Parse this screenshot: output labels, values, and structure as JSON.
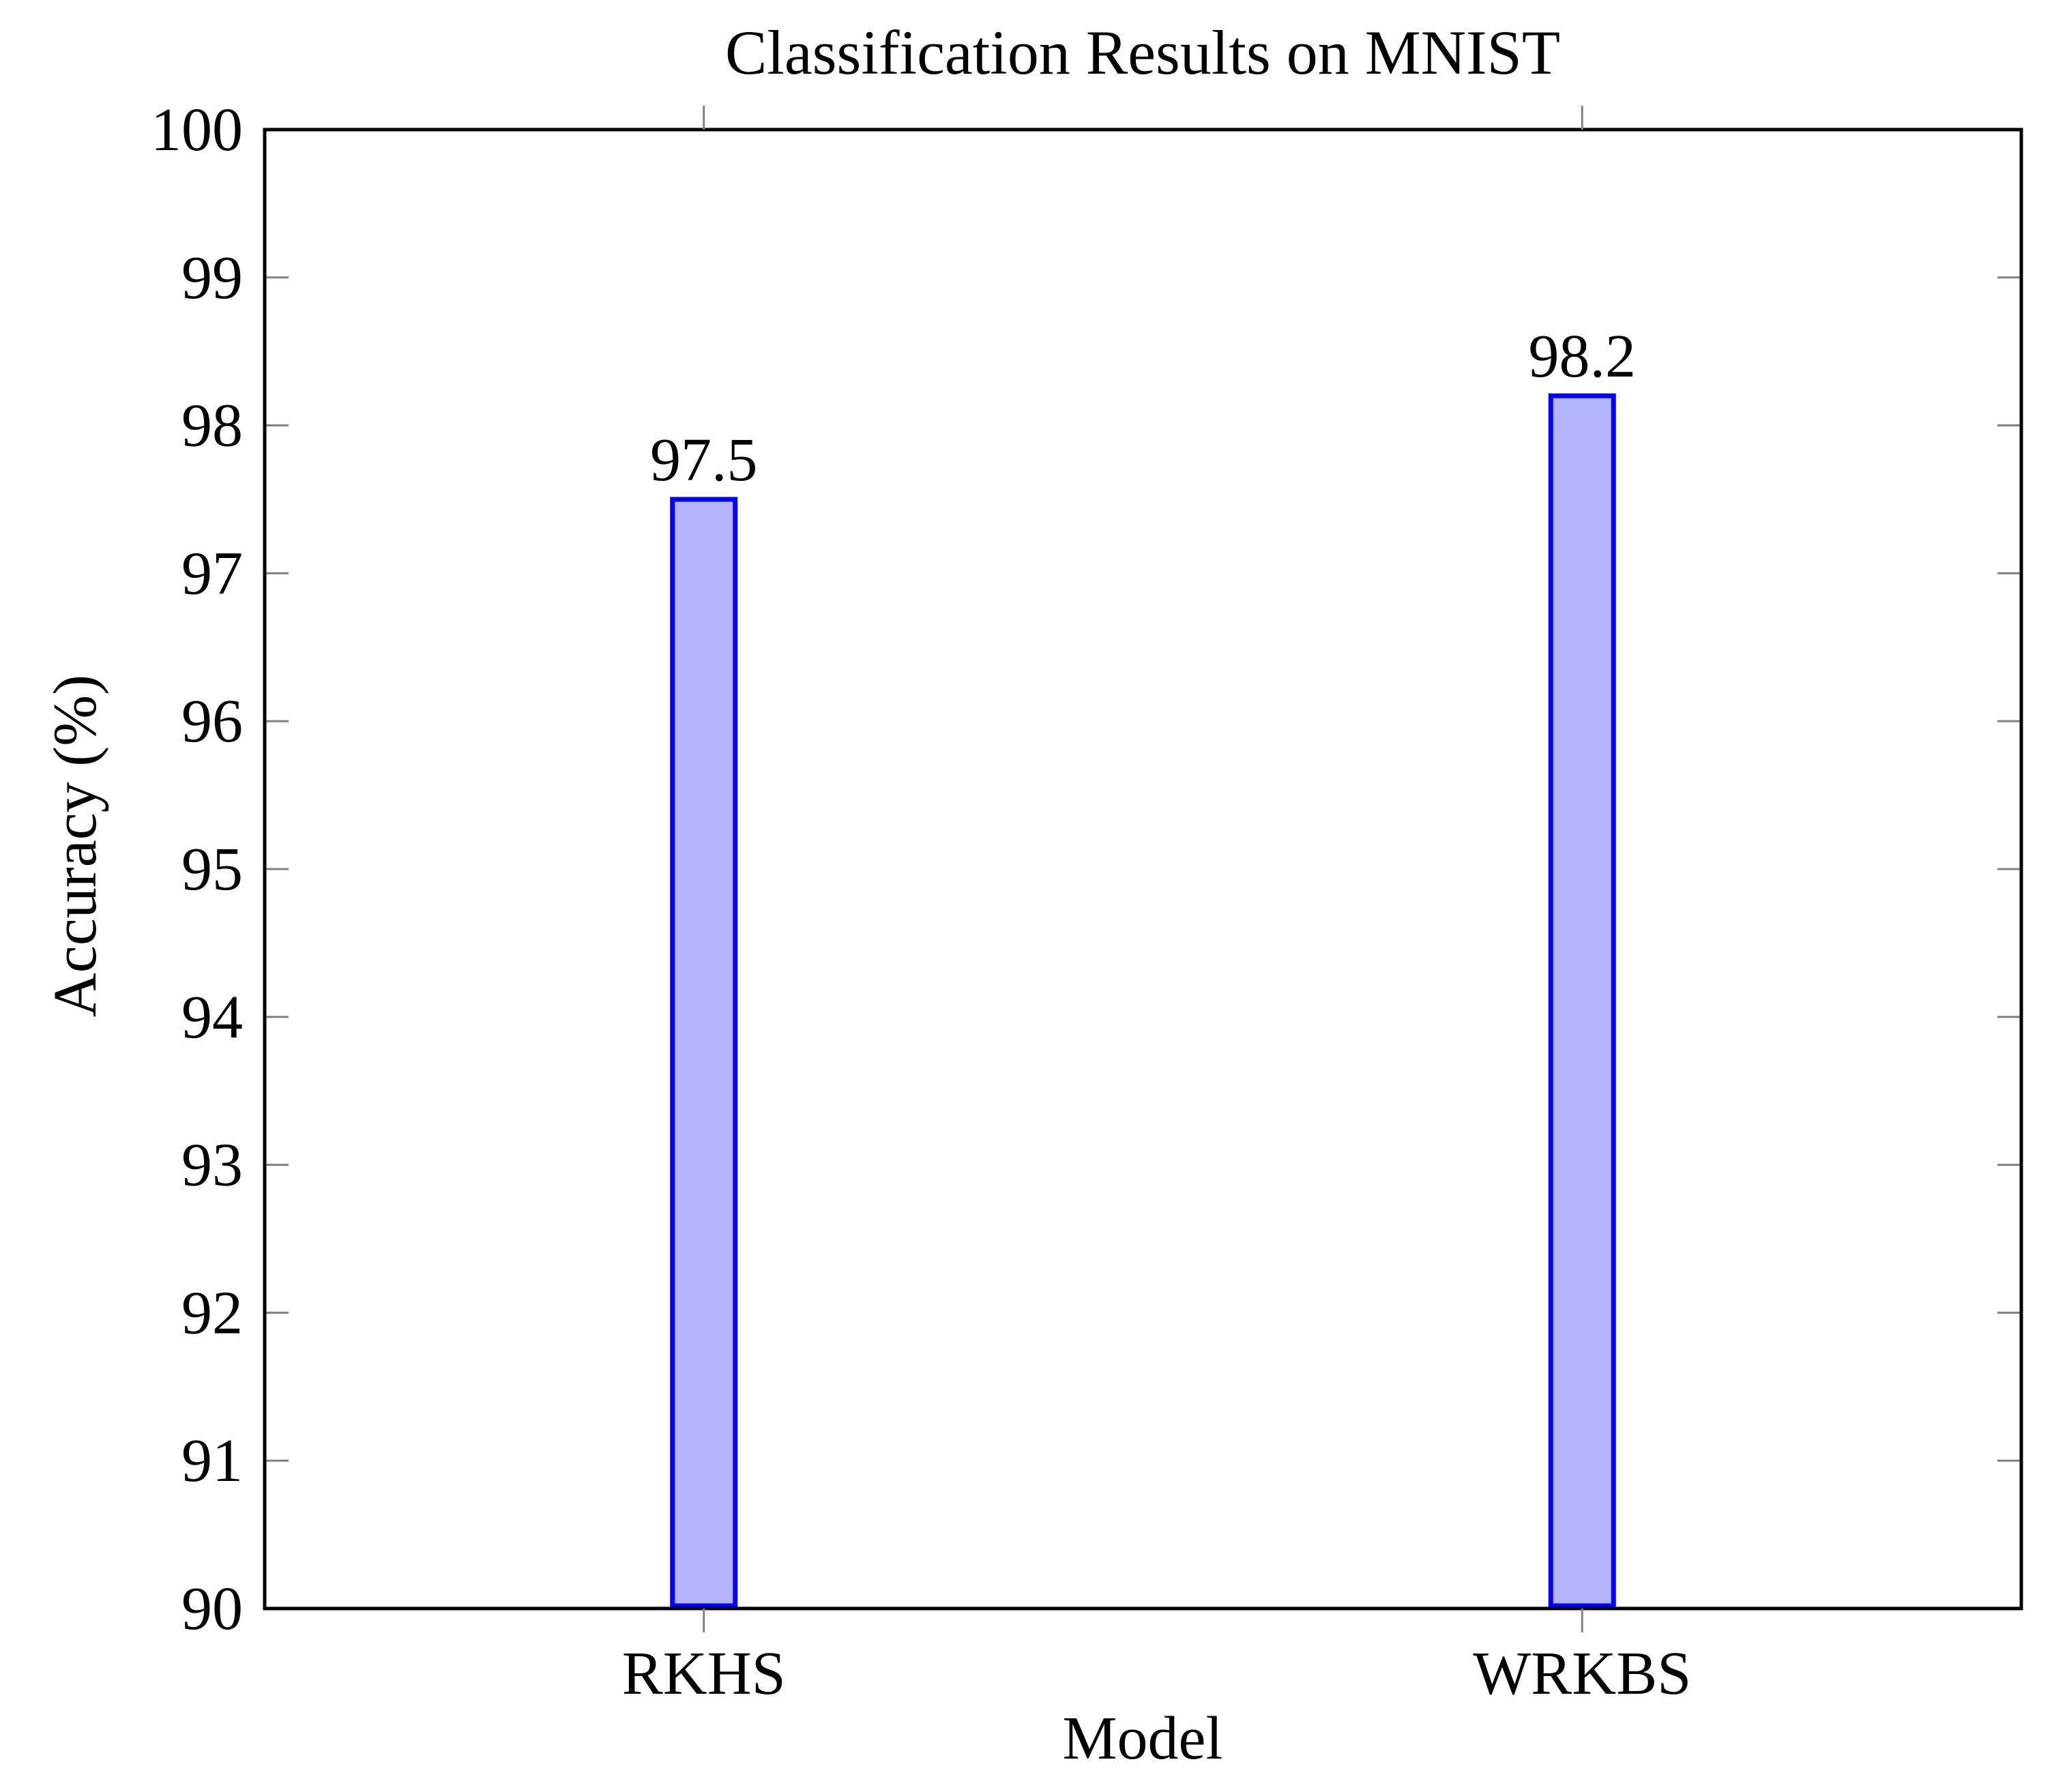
{
  "figure": {
    "background": "#ffffff"
  },
  "chart_data": {
    "type": "bar",
    "title": "Classification Results on MNIST",
    "xlabel": "Model",
    "ylabel": "Accuracy (%)",
    "categories": [
      "RKHS",
      "WRKBS"
    ],
    "values": [
      97.5,
      98.2
    ],
    "value_labels": [
      "97.5",
      "98.2"
    ],
    "ylim": [
      90,
      100
    ],
    "yticks": [
      90,
      91,
      92,
      93,
      94,
      95,
      96,
      97,
      98,
      99,
      100
    ],
    "grid": false,
    "frame": "closed-box",
    "tick_style": {
      "y_direction": "inside-both-sides",
      "x_direction": "outside-top-and-bottom"
    },
    "colors": {
      "bar_fill": "#b3b3fb",
      "bar_border": "#0000ff",
      "value_label": "#0000ff",
      "axis": "#000000",
      "tick": "#808080",
      "text": "#000000"
    }
  }
}
